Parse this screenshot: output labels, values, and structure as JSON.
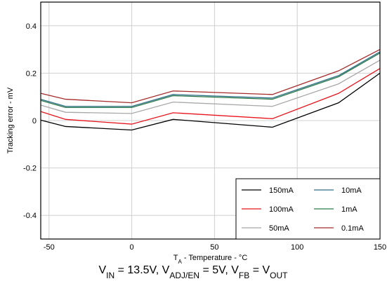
{
  "chart_data": {
    "type": "line",
    "ylabel": "Tracking error - mV",
    "xlabel": [
      "T",
      "A",
      " - Temperature - °C"
    ],
    "caption": [
      "V",
      "IN",
      " = 13.5V, V",
      "ADJ/EN",
      " = 5V, V",
      "FB",
      " = V",
      "OUT"
    ],
    "x": [
      -55,
      -40,
      0,
      25,
      85,
      125,
      150
    ],
    "series": [
      {
        "name": "150mA",
        "color": "#000000",
        "values": [
          0.002,
          -0.025,
          -0.04,
          0.005,
          -0.028,
          0.075,
          0.2
        ]
      },
      {
        "name": "100mA",
        "color": "#e8141c",
        "values": [
          0.038,
          0.005,
          -0.015,
          0.033,
          0.008,
          0.115,
          0.22
        ]
      },
      {
        "name": "50mA",
        "color": "#a8a8a8",
        "values": [
          0.065,
          0.035,
          0.03,
          0.078,
          0.06,
          0.155,
          0.255
        ]
      },
      {
        "name": "10mA",
        "color": "#2f6f86",
        "values": [
          0.09,
          0.06,
          0.06,
          0.11,
          0.095,
          0.19,
          0.29
        ]
      },
      {
        "name": "1mA",
        "color": "#2b7a4b",
        "values": [
          0.085,
          0.055,
          0.055,
          0.105,
          0.09,
          0.185,
          0.285
        ]
      },
      {
        "name": "0.1mA",
        "color": "#a52a2a",
        "values": [
          0.115,
          0.09,
          0.075,
          0.125,
          0.11,
          0.21,
          0.3
        ]
      }
    ],
    "xlim": [
      -55,
      150
    ],
    "xticks": [
      -50,
      0,
      50,
      100,
      150
    ],
    "ylim": [
      -0.5,
      0.5
    ],
    "yticks": [
      -0.4,
      -0.2,
      0,
      0.2,
      0.4
    ],
    "grid": true,
    "legend": "lower right"
  }
}
